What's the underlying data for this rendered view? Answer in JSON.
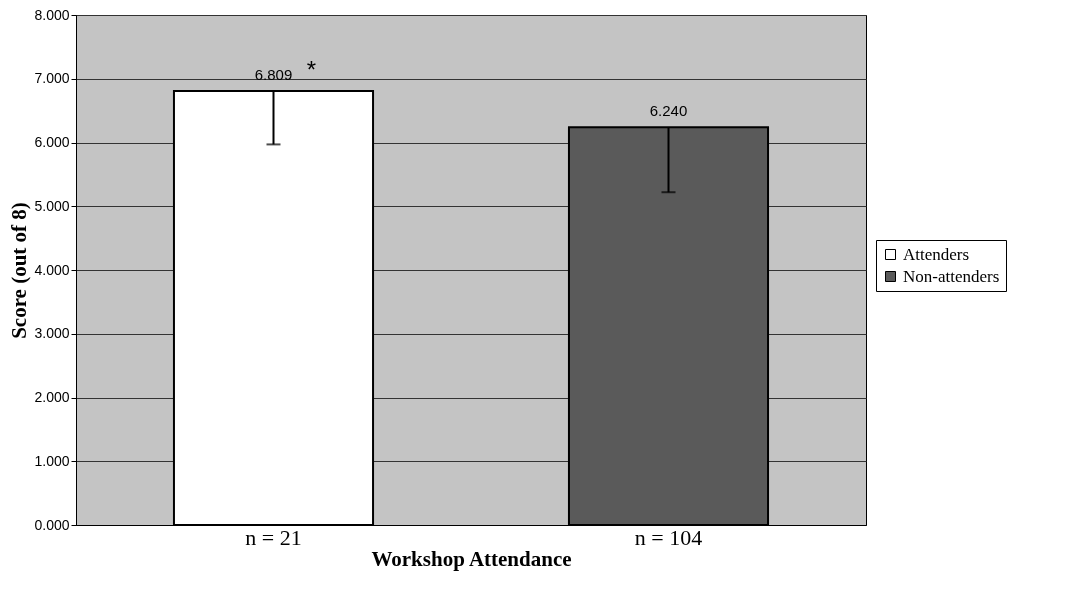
{
  "chart_data": {
    "type": "bar",
    "xlabel": "Workshop Attendance",
    "ylabel": "Score (out of 8)",
    "categories": [
      "n = 21",
      "n = 104"
    ],
    "series": [
      {
        "name": "Attenders",
        "color": "#ffffff",
        "values": [
          6.809,
          null
        ],
        "value_labels": [
          "6.809",
          null
        ],
        "errors": [
          [
            5.97,
            6.809
          ],
          null
        ]
      },
      {
        "name": "Non-attenders",
        "color": "#5a5a5a",
        "values": [
          null,
          6.24
        ],
        "value_labels": [
          null,
          "6.240"
        ],
        "errors": [
          null,
          [
            5.22,
            6.24
          ]
        ]
      }
    ],
    "ylim": [
      0,
      8
    ],
    "yticks": [
      {
        "value": 0,
        "label": "0.000"
      },
      {
        "value": 1,
        "label": "1.000"
      },
      {
        "value": 2,
        "label": "2.000"
      },
      {
        "value": 3,
        "label": "3.000"
      },
      {
        "value": 4,
        "label": "4.000"
      },
      {
        "value": 5,
        "label": "5.000"
      },
      {
        "value": 6,
        "label": "6.000"
      },
      {
        "value": 7,
        "label": "7.000"
      },
      {
        "value": 8,
        "label": "8.000"
      }
    ],
    "grid": "y",
    "legend": "right",
    "annotations": [
      {
        "text": "*",
        "x": "n = 21",
        "y": 6.809
      }
    ]
  }
}
